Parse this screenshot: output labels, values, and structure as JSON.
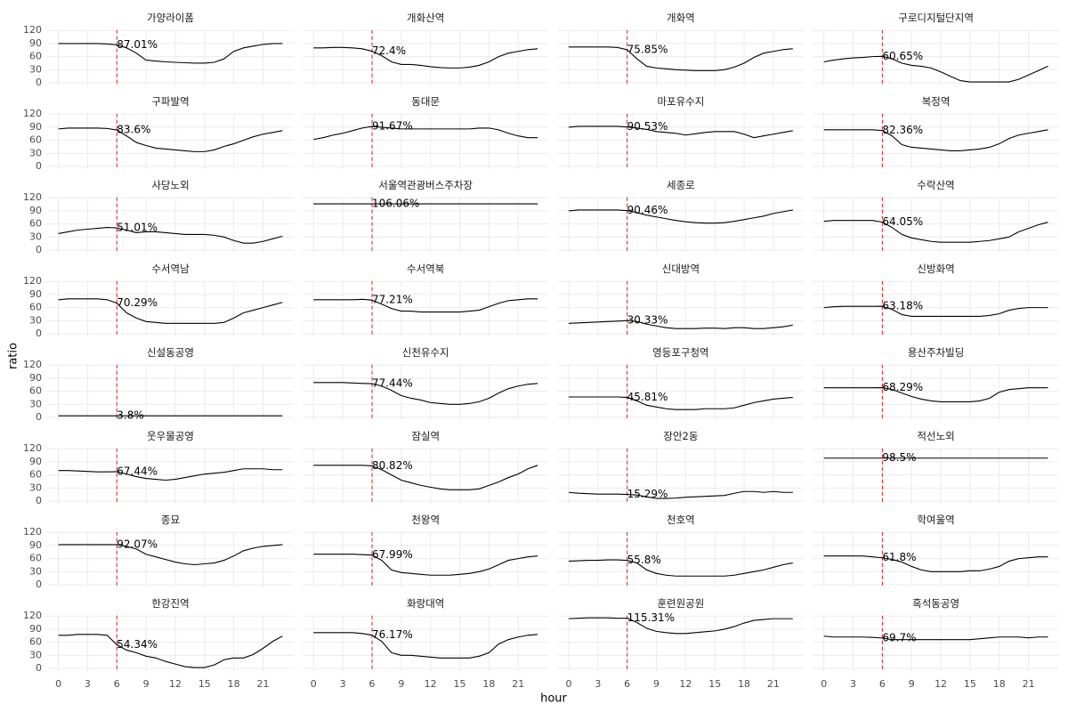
{
  "chart_data": {
    "type": "line",
    "x_label": "hour",
    "y_label": "ratio",
    "x": [
      0,
      1,
      2,
      3,
      4,
      5,
      6,
      7,
      8,
      9,
      10,
      11,
      12,
      13,
      14,
      15,
      16,
      17,
      18,
      19,
      20,
      21,
      22,
      23
    ],
    "xlim": [
      -1.15,
      24.15
    ],
    "xticks": [
      0,
      3,
      6,
      9,
      12,
      15,
      18,
      21
    ],
    "ylim": [
      -6,
      121
    ],
    "yticks": [
      0,
      30,
      60,
      90,
      120
    ],
    "vline": 6,
    "vline_color": "#e41a1c",
    "line_color": "#000000",
    "grid": true,
    "panels": [
      {
        "title": "가양라이폼",
        "annotation": "87.01%",
        "values": [
          90,
          90,
          90,
          90,
          90,
          89,
          87.01,
          80,
          68,
          52,
          50,
          48,
          47,
          46,
          45,
          45,
          47,
          55,
          72,
          80,
          84,
          88,
          90,
          90
        ]
      },
      {
        "title": "개화산역",
        "annotation": "72.4%",
        "values": [
          80,
          80,
          81,
          81,
          80,
          78,
          72.4,
          62,
          48,
          42,
          42,
          40,
          37,
          35,
          34,
          34,
          36,
          40,
          48,
          60,
          68,
          72,
          76,
          78
        ]
      },
      {
        "title": "개화역",
        "annotation": "75.85%",
        "values": [
          82,
          82,
          82,
          82,
          82,
          81,
          75.85,
          55,
          38,
          34,
          32,
          30,
          29,
          28,
          28,
          28,
          30,
          36,
          45,
          58,
          68,
          72,
          76,
          78
        ]
      },
      {
        "title": "구로디지털단지역",
        "annotation": "60.65%",
        "values": [
          48,
          52,
          55,
          57,
          58,
          60,
          60.65,
          55,
          45,
          40,
          38,
          34,
          25,
          15,
          5,
          2,
          2,
          2,
          2,
          2,
          8,
          18,
          28,
          38
        ]
      },
      {
        "title": "구파발역",
        "annotation": "83.6%",
        "values": [
          86,
          88,
          88,
          88,
          88,
          87,
          83.6,
          70,
          55,
          48,
          42,
          40,
          38,
          36,
          34,
          34,
          38,
          46,
          52,
          60,
          68,
          74,
          78,
          82
        ]
      },
      {
        "title": "동대문",
        "annotation": "91.67%",
        "values": [
          62,
          66,
          72,
          76,
          82,
          88,
          91.67,
          90,
          88,
          86,
          86,
          86,
          86,
          86,
          86,
          86,
          86,
          88,
          88,
          84,
          76,
          70,
          66,
          66
        ]
      },
      {
        "title": "마포유수지",
        "annotation": "90.53%",
        "values": [
          90,
          92,
          92,
          92,
          92,
          92,
          90.53,
          88,
          85,
          80,
          78,
          76,
          72,
          75,
          78,
          80,
          80,
          80,
          74,
          66,
          70,
          74,
          78,
          82
        ]
      },
      {
        "title": "복정역",
        "annotation": "82.36%",
        "values": [
          84,
          84,
          84,
          84,
          84,
          84,
          82.36,
          70,
          50,
          44,
          42,
          40,
          38,
          36,
          36,
          38,
          40,
          44,
          52,
          64,
          72,
          76,
          80,
          84
        ]
      },
      {
        "title": "사당노외",
        "annotation": "51.01%",
        "values": [
          38,
          42,
          46,
          48,
          50,
          52,
          51.01,
          46,
          40,
          42,
          42,
          40,
          38,
          36,
          36,
          36,
          34,
          30,
          22,
          16,
          16,
          20,
          26,
          32
        ]
      },
      {
        "title": "서울역관광버스주차장",
        "annotation": "106.06%",
        "values": [
          106.06,
          106.06,
          106.06,
          106.06,
          106.06,
          106.06,
          106.06,
          106.06,
          106.06,
          106.06,
          106.06,
          106.06,
          106.06,
          106.06,
          106.06,
          106.06,
          106.06,
          106.06,
          106.06,
          106.06,
          106.06,
          106.06,
          106.06,
          106.06
        ]
      },
      {
        "title": "세종로",
        "annotation": "90.46%",
        "values": [
          90,
          92,
          92,
          92,
          92,
          92,
          90.46,
          86,
          80,
          76,
          72,
          68,
          65,
          63,
          62,
          62,
          63,
          66,
          70,
          74,
          78,
          84,
          88,
          92
        ]
      },
      {
        "title": "수락산역",
        "annotation": "64.05%",
        "values": [
          66,
          68,
          68,
          68,
          68,
          68,
          64.05,
          52,
          36,
          28,
          24,
          20,
          18,
          18,
          18,
          18,
          20,
          22,
          26,
          30,
          42,
          50,
          58,
          64
        ]
      },
      {
        "title": "수서역남",
        "annotation": "70.29%",
        "values": [
          78,
          80,
          80,
          80,
          80,
          78,
          70.29,
          48,
          36,
          28,
          26,
          24,
          24,
          24,
          24,
          24,
          24,
          26,
          36,
          48,
          54,
          60,
          66,
          72
        ]
      },
      {
        "title": "수서역북",
        "annotation": "77.21%",
        "values": [
          78,
          78,
          78,
          78,
          78,
          79,
          77.21,
          68,
          58,
          52,
          52,
          50,
          50,
          50,
          50,
          50,
          52,
          54,
          62,
          70,
          76,
          78,
          80,
          80
        ]
      },
      {
        "title": "신대방역",
        "annotation": "30.33%",
        "values": [
          24,
          25,
          26,
          27,
          28,
          29,
          30.33,
          28,
          22,
          18,
          14,
          12,
          12,
          12,
          13,
          13,
          12,
          14,
          14,
          12,
          12,
          14,
          16,
          20
        ]
      },
      {
        "title": "신방화역",
        "annotation": "63.18%",
        "values": [
          60,
          62,
          63,
          63,
          63,
          63,
          63.18,
          56,
          44,
          40,
          40,
          40,
          40,
          40,
          40,
          40,
          40,
          42,
          46,
          54,
          58,
          60,
          60,
          60
        ]
      },
      {
        "title": "신설동공영",
        "annotation": "3.8%",
        "values": [
          3.8,
          3.8,
          3.8,
          3.8,
          3.8,
          3.8,
          3.8,
          3.8,
          3.8,
          3.8,
          3.8,
          3.8,
          3.8,
          3.8,
          3.8,
          3.8,
          3.8,
          3.8,
          3.8,
          3.8,
          3.8,
          3.8,
          3.8,
          3.8
        ]
      },
      {
        "title": "신천유수지",
        "annotation": "77.44%",
        "values": [
          80,
          80,
          80,
          80,
          79,
          78,
          77.44,
          72,
          62,
          50,
          44,
          40,
          34,
          32,
          30,
          30,
          32,
          36,
          44,
          56,
          66,
          72,
          76,
          78
        ]
      },
      {
        "title": "영등포구청역",
        "annotation": "45.81%",
        "values": [
          47,
          47,
          47,
          47,
          47,
          47,
          45.81,
          38,
          28,
          24,
          20,
          18,
          18,
          18,
          20,
          20,
          20,
          22,
          28,
          34,
          38,
          42,
          44,
          46
        ]
      },
      {
        "title": "용산주차빌딩",
        "annotation": "68.29%",
        "values": [
          68,
          68,
          68,
          68,
          68,
          68,
          68.29,
          64,
          56,
          48,
          42,
          38,
          36,
          36,
          36,
          36,
          38,
          44,
          58,
          64,
          66,
          68,
          68,
          68
        ]
      },
      {
        "title": "웃우물공영",
        "annotation": "67.44%",
        "values": [
          70,
          70,
          69,
          68,
          67,
          67,
          67.44,
          62,
          56,
          52,
          50,
          48,
          50,
          54,
          58,
          62,
          64,
          66,
          70,
          74,
          74,
          74,
          72,
          72
        ]
      },
      {
        "title": "잠실역",
        "annotation": "80.82%",
        "values": [
          82,
          82,
          82,
          82,
          82,
          82,
          80.82,
          72,
          60,
          48,
          42,
          36,
          32,
          28,
          26,
          26,
          26,
          28,
          36,
          44,
          54,
          62,
          74,
          82
        ]
      },
      {
        "title": "장안2동",
        "annotation": "15.29%",
        "values": [
          20,
          18,
          17,
          16,
          16,
          16,
          15.29,
          14,
          10,
          6,
          6,
          7,
          9,
          10,
          11,
          12,
          13,
          18,
          22,
          22,
          20,
          22,
          20,
          20
        ]
      },
      {
        "title": "적선노외",
        "annotation": "98.5%",
        "values": [
          98.5,
          98.5,
          98.5,
          98.5,
          98.5,
          98.5,
          98.5,
          98.5,
          98.5,
          98.5,
          98.5,
          98.5,
          98.5,
          98.5,
          98.5,
          98.5,
          98.5,
          98.5,
          98.5,
          98.5,
          98.5,
          98.5,
          98.5,
          98.5
        ]
      },
      {
        "title": "종묘",
        "annotation": "92.07%",
        "values": [
          92,
          92,
          92,
          92,
          92,
          92,
          92.07,
          88,
          82,
          70,
          64,
          58,
          52,
          48,
          46,
          48,
          50,
          56,
          66,
          78,
          84,
          88,
          90,
          92
        ]
      },
      {
        "title": "천왕역",
        "annotation": "67.99%",
        "values": [
          70,
          70,
          70,
          70,
          70,
          69,
          67.99,
          56,
          34,
          28,
          26,
          24,
          22,
          22,
          22,
          24,
          26,
          30,
          36,
          46,
          56,
          60,
          64,
          66
        ]
      },
      {
        "title": "천호역",
        "annotation": "55.8%",
        "values": [
          54,
          55,
          56,
          56,
          57,
          57,
          55.8,
          50,
          34,
          26,
          22,
          20,
          20,
          20,
          20,
          20,
          20,
          22,
          26,
          30,
          34,
          40,
          46,
          50
        ]
      },
      {
        "title": "학여울역",
        "annotation": "61.8%",
        "values": [
          66,
          66,
          66,
          66,
          66,
          64,
          61.8,
          58,
          52,
          42,
          34,
          30,
          30,
          30,
          30,
          32,
          32,
          36,
          42,
          54,
          60,
          62,
          64,
          64
        ]
      },
      {
        "title": "한강진역",
        "annotation": "54.34%",
        "values": [
          76,
          76,
          78,
          78,
          78,
          76,
          54.34,
          42,
          36,
          28,
          24,
          16,
          10,
          4,
          2,
          2,
          8,
          20,
          24,
          24,
          32,
          46,
          62,
          74
        ]
      },
      {
        "title": "화랑대역",
        "annotation": "76.17%",
        "values": [
          82,
          82,
          82,
          82,
          82,
          80,
          76.17,
          62,
          36,
          30,
          30,
          28,
          26,
          24,
          24,
          24,
          24,
          28,
          36,
          56,
          66,
          72,
          76,
          78
        ]
      },
      {
        "title": "훈련원공원",
        "annotation": "115.31%",
        "values": [
          114,
          115,
          116,
          116,
          116,
          115,
          115.31,
          105,
          92,
          85,
          82,
          80,
          80,
          82,
          84,
          86,
          90,
          96,
          104,
          110,
          112,
          114,
          114,
          114
        ]
      },
      {
        "title": "흑석동공영",
        "annotation": "69.7%",
        "values": [
          74,
          72,
          72,
          72,
          72,
          71,
          69.7,
          66,
          66,
          66,
          66,
          66,
          66,
          66,
          66,
          66,
          68,
          70,
          72,
          72,
          72,
          70,
          72,
          72
        ]
      }
    ]
  }
}
